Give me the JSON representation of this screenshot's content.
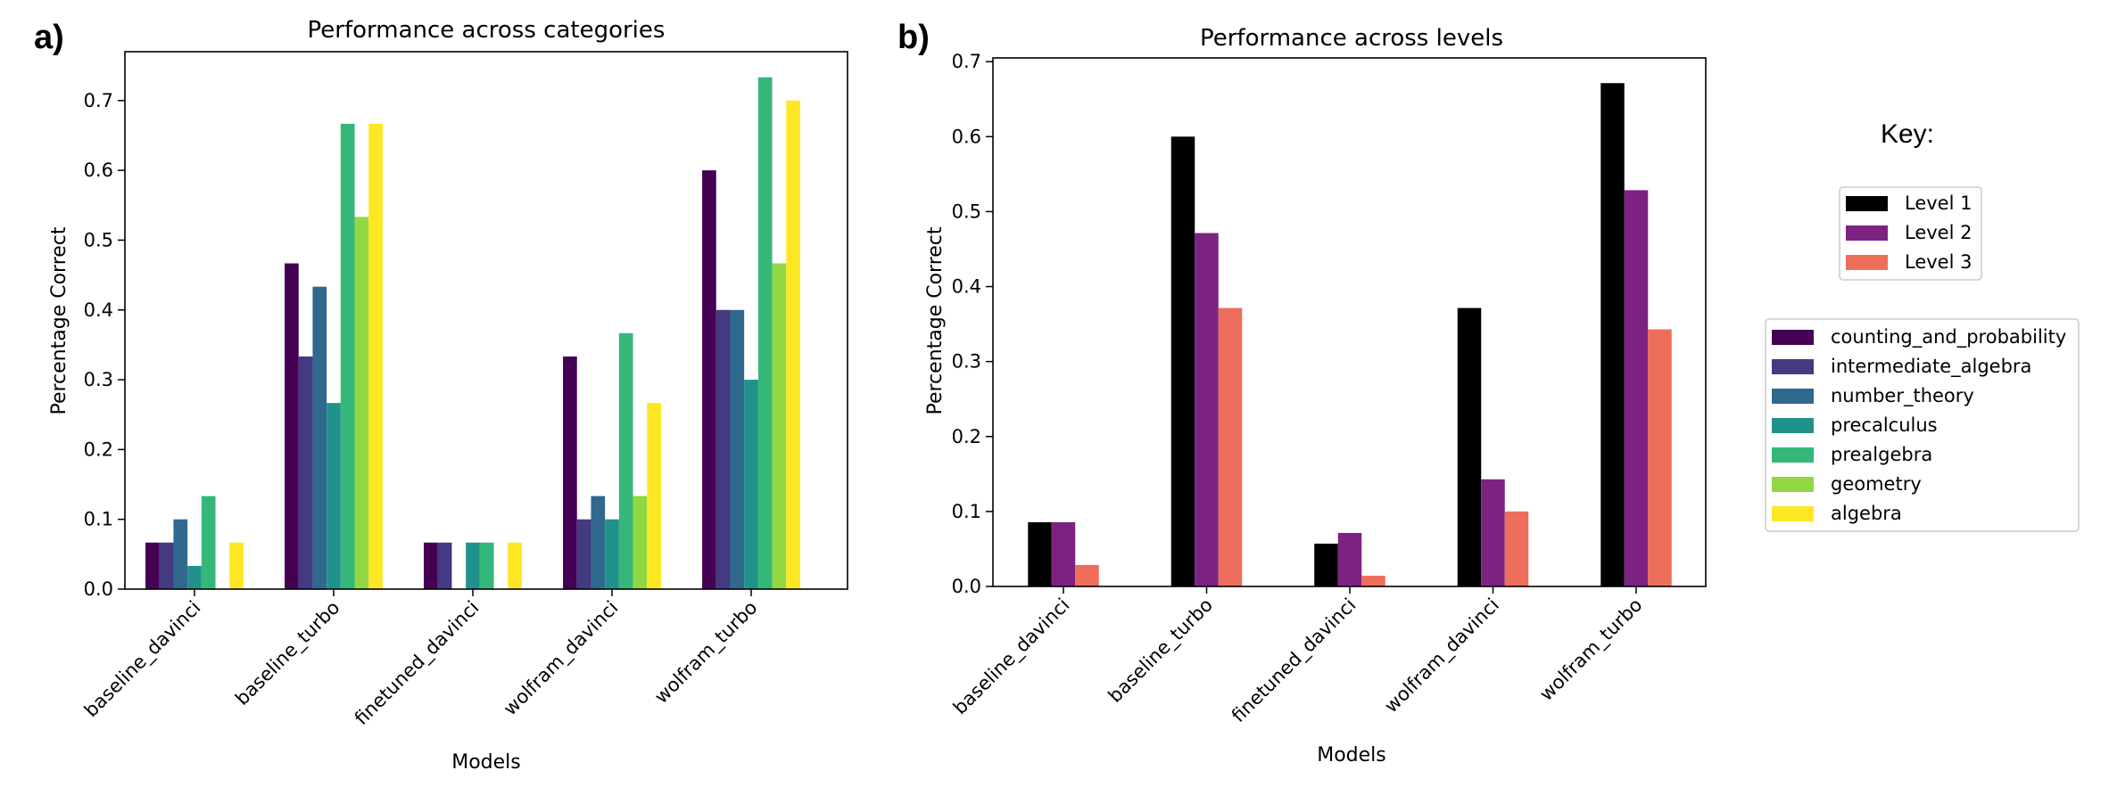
{
  "key_title": "Key:",
  "chart_data": [
    {
      "panel_label": "a)",
      "type": "bar",
      "title": "Performance across categories",
      "xlabel": "Models",
      "ylabel": "Percentage Correct",
      "ylim": [
        0,
        0.77
      ],
      "yticks": [
        "0.0",
        "0.1",
        "0.2",
        "0.3",
        "0.4",
        "0.5",
        "0.6",
        "0.7"
      ],
      "grid": false,
      "legend_position": "right",
      "categories": [
        "baseline_davinci",
        "baseline_turbo",
        "finetuned_davinci",
        "wolfram_davinci",
        "wolfram_turbo"
      ],
      "series": [
        {
          "name": "counting_and_probability",
          "color": "#440154",
          "values": [
            0.0667,
            0.4667,
            0.0667,
            0.3333,
            0.6
          ]
        },
        {
          "name": "intermediate_algebra",
          "color": "#443983",
          "values": [
            0.0667,
            0.3333,
            0.0667,
            0.1,
            0.4
          ]
        },
        {
          "name": "number_theory",
          "color": "#31688e",
          "values": [
            0.1,
            0.4333,
            0.0,
            0.1333,
            0.4
          ]
        },
        {
          "name": "precalculus",
          "color": "#21918c",
          "values": [
            0.0333,
            0.2667,
            0.0667,
            0.1,
            0.3
          ]
        },
        {
          "name": "prealgebra",
          "color": "#35b779",
          "values": [
            0.1333,
            0.6667,
            0.0667,
            0.3667,
            0.7333
          ]
        },
        {
          "name": "geometry",
          "color": "#90d743",
          "values": [
            0.0,
            0.5333,
            0.0,
            0.1333,
            0.4667
          ]
        },
        {
          "name": "algebra",
          "color": "#fde725",
          "values": [
            0.0667,
            0.6667,
            0.0667,
            0.2667,
            0.7
          ]
        }
      ]
    },
    {
      "panel_label": "b)",
      "type": "bar",
      "title": "Performance across levels",
      "xlabel": "Models",
      "ylabel": "Percentage Correct",
      "ylim": [
        0,
        0.705
      ],
      "yticks": [
        "0.0",
        "0.1",
        "0.2",
        "0.3",
        "0.4",
        "0.5",
        "0.6",
        "0.7"
      ],
      "grid": false,
      "legend_position": "right",
      "categories": [
        "baseline_davinci",
        "baseline_turbo",
        "finetuned_davinci",
        "wolfram_davinci",
        "wolfram_turbo"
      ],
      "series": [
        {
          "name": "Level 1",
          "color": "#000000",
          "values": [
            0.0857,
            0.6,
            0.0571,
            0.3714,
            0.6714
          ]
        },
        {
          "name": "Level 2",
          "color": "#7c2382",
          "values": [
            0.0857,
            0.4714,
            0.0714,
            0.1429,
            0.5286
          ]
        },
        {
          "name": "Level 3",
          "color": "#ed6e5b",
          "values": [
            0.0286,
            0.3714,
            0.0143,
            0.1,
            0.3429
          ]
        }
      ]
    }
  ]
}
